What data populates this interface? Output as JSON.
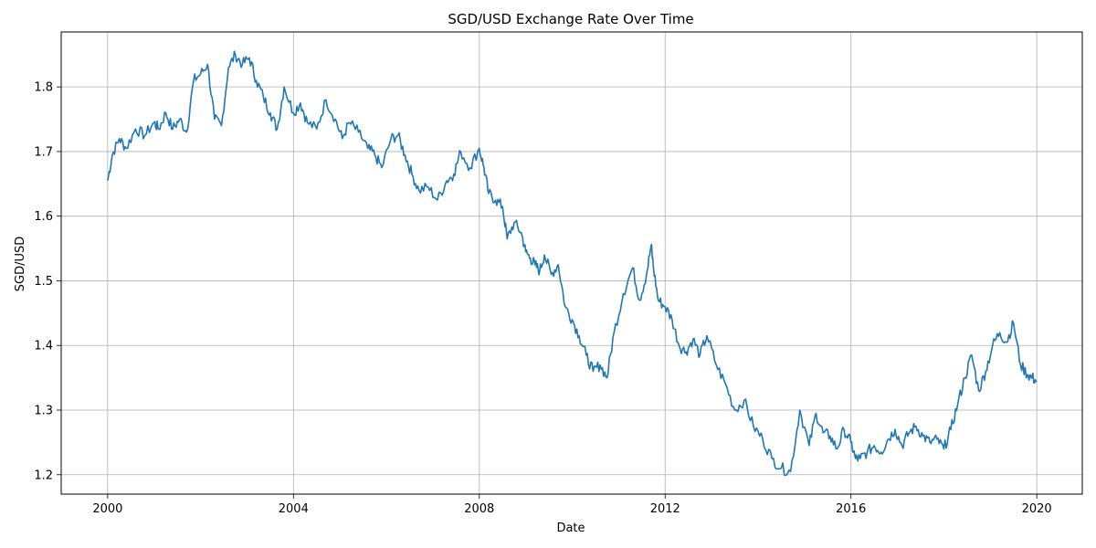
{
  "chart_data": {
    "type": "line",
    "title": "SGD/USD Exchange Rate Over Time",
    "xlabel": "Date",
    "ylabel": "SGD/USD",
    "xlim": [
      1999.0,
      2020.98
    ],
    "ylim": [
      1.17,
      1.885
    ],
    "x_ticks": [
      2000,
      2004,
      2008,
      2012,
      2016,
      2020
    ],
    "x_tick_labels": [
      "2000",
      "2004",
      "2008",
      "2012",
      "2016",
      "2020"
    ],
    "y_ticks": [
      1.2,
      1.3,
      1.4,
      1.5,
      1.6,
      1.7,
      1.8
    ],
    "y_tick_labels": [
      "1.2",
      "1.3",
      "1.4",
      "1.5",
      "1.6",
      "1.7",
      "1.8"
    ],
    "grid": true,
    "line_color": "#1f77b4",
    "series": [
      {
        "name": "",
        "x": [
          2000.0,
          2000.1,
          2000.25,
          2000.4,
          2000.6,
          2000.8,
          2001.0,
          2001.1,
          2001.25,
          2001.4,
          2001.55,
          2001.7,
          2001.85,
          2002.0,
          2002.15,
          2002.3,
          2002.45,
          2002.6,
          2002.75,
          2002.9,
          2003.05,
          2003.2,
          2003.35,
          2003.5,
          2003.65,
          2003.8,
          2004.0,
          2004.15,
          2004.3,
          2004.5,
          2004.7,
          2004.9,
          2005.05,
          2005.2,
          2005.4,
          2005.6,
          2005.75,
          2005.9,
          2006.1,
          2006.25,
          2006.4,
          2006.55,
          2006.7,
          2006.9,
          2007.1,
          2007.3,
          2007.45,
          2007.6,
          2007.8,
          2008.0,
          2008.1,
          2008.2,
          2008.35,
          2008.5,
          2008.6,
          2008.75,
          2008.9,
          2009.0,
          2009.1,
          2009.2,
          2009.3,
          2009.4,
          2009.55,
          2009.7,
          2009.85,
          2010.0,
          2010.15,
          2010.3,
          2010.45,
          2010.6,
          2010.75,
          2010.9,
          2011.1,
          2011.3,
          2011.45,
          2011.6,
          2011.7,
          2011.75,
          2011.85,
          2012.0,
          2012.15,
          2012.3,
          2012.45,
          2012.6,
          2012.75,
          2012.9,
          2013.1,
          2013.3,
          2013.5,
          2013.7,
          2013.9,
          2014.1,
          2014.3,
          2014.5,
          2014.7,
          2014.9,
          2015.1,
          2015.25,
          2015.4,
          2015.55,
          2015.7,
          2015.85,
          2016.0,
          2016.1,
          2016.2,
          2016.35,
          2016.5,
          2016.65,
          2016.8,
          2016.95,
          2017.1,
          2017.25,
          2017.4,
          2017.55,
          2017.7,
          2017.85,
          2018.0,
          2018.15,
          2018.3,
          2018.45,
          2018.6,
          2018.75,
          2018.9,
          2019.05,
          2019.2,
          2019.35,
          2019.5,
          2019.65,
          2019.8,
          2019.9,
          2020.0
        ],
        "values": [
          1.655,
          1.695,
          1.72,
          1.705,
          1.735,
          1.725,
          1.745,
          1.735,
          1.76,
          1.735,
          1.75,
          1.73,
          1.81,
          1.82,
          1.835,
          1.75,
          1.74,
          1.83,
          1.85,
          1.835,
          1.845,
          1.81,
          1.785,
          1.76,
          1.735,
          1.8,
          1.76,
          1.775,
          1.745,
          1.735,
          1.78,
          1.75,
          1.72,
          1.745,
          1.73,
          1.705,
          1.695,
          1.675,
          1.72,
          1.725,
          1.695,
          1.665,
          1.64,
          1.645,
          1.625,
          1.655,
          1.665,
          1.7,
          1.675,
          1.705,
          1.675,
          1.635,
          1.625,
          1.615,
          1.565,
          1.59,
          1.575,
          1.545,
          1.535,
          1.525,
          1.515,
          1.54,
          1.51,
          1.525,
          1.46,
          1.44,
          1.415,
          1.385,
          1.36,
          1.37,
          1.35,
          1.42,
          1.48,
          1.52,
          1.47,
          1.51,
          1.555,
          1.52,
          1.47,
          1.46,
          1.44,
          1.4,
          1.39,
          1.41,
          1.385,
          1.415,
          1.37,
          1.34,
          1.3,
          1.315,
          1.275,
          1.255,
          1.225,
          1.21,
          1.205,
          1.3,
          1.245,
          1.295,
          1.265,
          1.26,
          1.24,
          1.27,
          1.25,
          1.225,
          1.225,
          1.235,
          1.245,
          1.235,
          1.255,
          1.27,
          1.245,
          1.265,
          1.275,
          1.26,
          1.25,
          1.255,
          1.24,
          1.27,
          1.31,
          1.35,
          1.385,
          1.33,
          1.36,
          1.4,
          1.42,
          1.405,
          1.435,
          1.37,
          1.355,
          1.35,
          1.345
        ],
        "_note_ignore": ""
      }
    ]
  }
}
